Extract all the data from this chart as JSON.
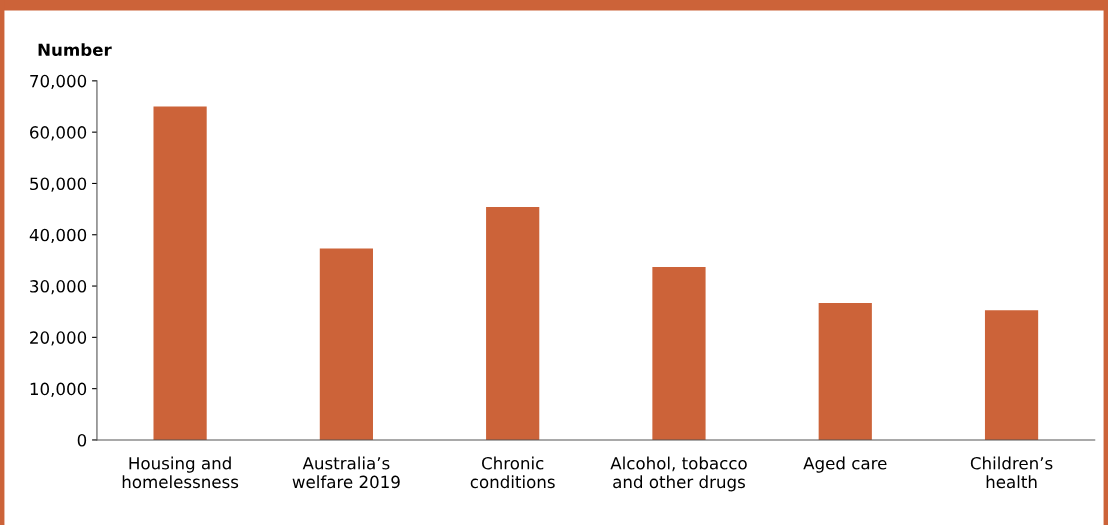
{
  "chart_data": {
    "type": "bar",
    "ylabel": "Number",
    "categories": [
      "Housing and\nhomelessness",
      "Australia’s\nwelfare 2019",
      "Chronic\nconditions",
      "Alcohol, tobacco\nand other drugs",
      "Aged care",
      "Children’s\nhealth"
    ],
    "values": [
      65000,
      37300,
      45400,
      33700,
      26700,
      25300
    ],
    "color": "#cc6339",
    "ylim": [
      0,
      70000
    ],
    "yticks": [
      {
        "value": 0,
        "label": "0"
      },
      {
        "value": 10000,
        "label": "10,000"
      },
      {
        "value": 20000,
        "label": "20,000"
      },
      {
        "value": 30000,
        "label": "30,000"
      },
      {
        "value": 40000,
        "label": "40,000"
      },
      {
        "value": 50000,
        "label": "50,000"
      },
      {
        "value": 60000,
        "label": "60,000"
      },
      {
        "value": 70000,
        "label": "70,000"
      }
    ],
    "grid": false
  }
}
